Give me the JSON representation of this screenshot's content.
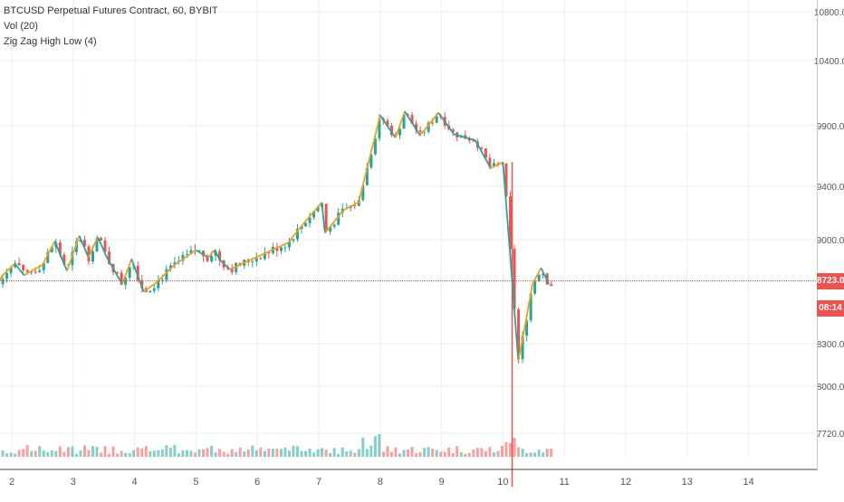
{
  "legend": {
    "symbol": "BTCUSD Perpetual Futures Contract, 60, BYBIT",
    "volume": "Vol (20)",
    "indicator": "Zig Zag High Low (4)"
  },
  "colors": {
    "up": "#26a69a",
    "down": "#ef5350",
    "zigzag_up": "#f0a020",
    "zigzag_down": "#26a69a",
    "price_line": "#ef5350",
    "grid": "#e8eef2",
    "axis_text": "#555555"
  },
  "price_tag": {
    "value": "8723.0",
    "timer": "08:14"
  },
  "chart_data": {
    "type": "line",
    "x_ticks": [
      "2",
      "3",
      "4",
      "5",
      "6",
      "7",
      "8",
      "9",
      "10",
      "11",
      "12",
      "13",
      "14"
    ],
    "y_ticks": [
      "10800.0",
      "10400.0",
      "9900.0",
      "9400.0",
      "9000.0",
      "8300.0",
      "8000.0",
      "7720.0"
    ],
    "ylim": [
      7600,
      10900
    ],
    "current_price": 8723.0,
    "series": [
      {
        "x": [
          1.75,
          1.85,
          2.05,
          2.2,
          2.5,
          2.7,
          2.9,
          3.1,
          3.25,
          3.4,
          3.55,
          3.8,
          3.95,
          4.15,
          4.35,
          4.65,
          5.0,
          5.2,
          5.3,
          5.4,
          5.55,
          6.5,
          6.75,
          7.05,
          7.1,
          7.4,
          7.65,
          8.0,
          8.25,
          8.4,
          8.65,
          8.95,
          9.2,
          9.55,
          9.8,
          10.0,
          10.25,
          10.35,
          10.48,
          10.62,
          10.75
        ],
        "values": [
          8690,
          8760,
          8840,
          8760,
          8830,
          8990,
          8790,
          9030,
          8880,
          9020,
          8880,
          8700,
          8870,
          8650,
          8710,
          8830,
          8930,
          8880,
          8930,
          8860,
          8800,
          8980,
          9120,
          9280,
          9050,
          9220,
          9280,
          9980,
          9800,
          10010,
          9820,
          10000,
          9830,
          9780,
          9550,
          9600,
          8180,
          8400,
          8700,
          8810,
          8700
        ]
      }
    ]
  }
}
